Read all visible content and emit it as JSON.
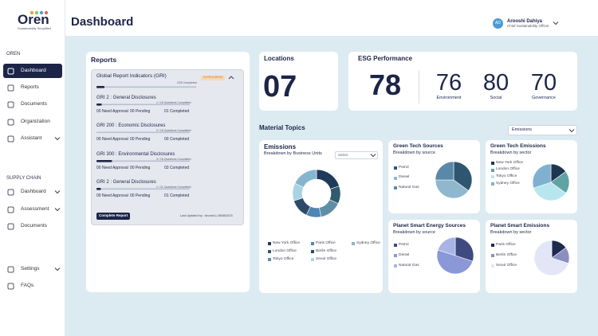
{
  "sidebar": {
    "logo": "Oren",
    "tagline": "Sustainability Simplified",
    "sections": [
      {
        "title": "OREN",
        "items": [
          "Dashboard",
          "Reports",
          "Documents",
          "Organization",
          "Assistant"
        ]
      },
      {
        "title": "SUPPLY CHAIN",
        "items": [
          "Dashboard",
          "Assessment",
          "Documents"
        ]
      }
    ],
    "footer_items": [
      "Settings",
      "FAQs"
    ]
  },
  "header": {
    "title": "Dashboard",
    "user": {
      "initials": "AD",
      "name": "Arooshi Dahiya",
      "role": "Chief Sustainability Officer"
    }
  },
  "reports": {
    "title": "Reports",
    "panel": {
      "title": "Global Report Indicators (GRI)",
      "status": "IN PROGRESS",
      "progress": "2/25 Completed",
      "completed": 2,
      "total": 25,
      "sections": [
        {
          "title": "GRI 2 : General Disclosures",
          "progress": "1 / 18 Questions Completed",
          "completed": 1,
          "total": 18,
          "stats": [
            "00 Need Approval",
            "00 Pending",
            "01 Completed"
          ]
        },
        {
          "title": "GRI 200 : Economic Disclosures",
          "progress": "0 / 16 Questions Completed",
          "completed": 0,
          "total": 16,
          "stats": [
            "00 Need Approval",
            "00 Pending",
            "00 Completed"
          ]
        },
        {
          "title": "GRI 300 : Environmental Disclosures",
          "progress": "3 / 18 Questions Completed",
          "completed": 3,
          "total": 18,
          "stats": [
            "00 Need Approval",
            "00 Pending",
            "03 Completed"
          ]
        },
        {
          "title": "GRI 2 : General Disclosures",
          "progress": "1 / 21 Questions Completed",
          "completed": 1,
          "total": 21,
          "stats": [
            "00 Need Approval",
            "00 Pending",
            "01 Completed"
          ]
        }
      ],
      "button": "Complete Report",
      "updated": "Last Updated by : Arooshi | 28/08/2023"
    }
  },
  "locations": {
    "title": "Locations",
    "value": "07"
  },
  "esg": {
    "title": "ESG Performance",
    "overall": "78",
    "scores": [
      {
        "value": "76",
        "label": "Environment"
      },
      {
        "value": "80",
        "label": "Social"
      },
      {
        "value": "70",
        "label": "Governance"
      }
    ]
  },
  "material_topics": {
    "title": "Material Topics",
    "filter": "Emissions"
  },
  "chart_data": [
    {
      "type": "donut",
      "title": "Emissions",
      "subtitle": "Breakdown by Business Units",
      "select": "Select",
      "categories": [
        "New York Office",
        "London Office",
        "Tokyo Office",
        "Paris Office",
        "Berlin Office",
        "Seoul Office",
        "Sydney Office"
      ],
      "values": [
        20,
        12,
        15,
        10,
        13,
        12,
        18
      ],
      "colors": [
        "#1f3a5a",
        "#2f5b6e",
        "#5f8fa6",
        "#4c86b3",
        "#2d4a6a",
        "#a9d3e3",
        "#86b6cf"
      ]
    },
    {
      "type": "pie",
      "title": "Green Tech Sources",
      "subtitle": "Breakdown by source",
      "categories": [
        "Petrol",
        "Diesel",
        "Natural Gas"
      ],
      "values": [
        35,
        40,
        25
      ],
      "colors": [
        "#2e5670",
        "#8fb8cf",
        "#5a88a8"
      ]
    },
    {
      "type": "pie",
      "title": "Green Tech Emissions",
      "subtitle": "Breakdown by sector",
      "categories": [
        "New York Office",
        "London Office",
        "Tokyo Office",
        "Sydney Office"
      ],
      "values": [
        15,
        20,
        35,
        30
      ],
      "colors": [
        "#1e3650",
        "#5fa3a3",
        "#b8e6ee",
        "#7fb0cf"
      ]
    },
    {
      "type": "pie",
      "title": "Planet Smart Energy Sources",
      "subtitle": "Breakdown by source",
      "categories": [
        "Petrol",
        "Diesel",
        "Natural Gas"
      ],
      "values": [
        30,
        50,
        20
      ],
      "colors": [
        "#3e4a80",
        "#8a98d8",
        "#a9b4e6"
      ]
    },
    {
      "type": "pie",
      "title": "Planet Smart Emissions",
      "subtitle": "Breakdown by sector",
      "categories": [
        "Paris Office",
        "Berlin Office",
        "Seoul Office"
      ],
      "values": [
        15,
        15,
        70
      ],
      "colors": [
        "#1e2a50",
        "#8a8fc0",
        "#e2e6f7"
      ]
    }
  ]
}
